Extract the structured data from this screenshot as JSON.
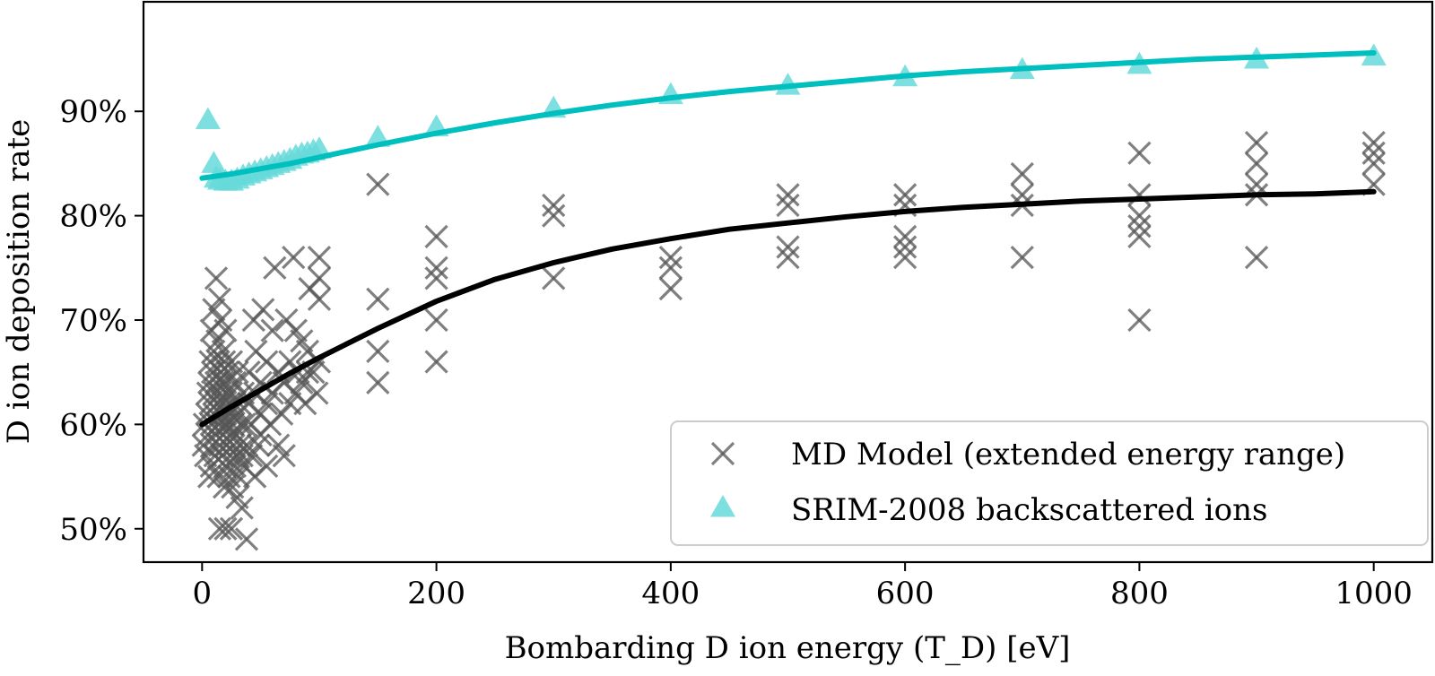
{
  "chart_data": {
    "type": "scatter",
    "xlabel": "Bombarding D ion energy (T_D) [eV]",
    "ylabel": "D ion deposition rate",
    "xlim": [
      -50,
      1050
    ],
    "ylim": [
      46.8,
      100.5
    ],
    "xticks": [
      0,
      200,
      400,
      600,
      800,
      1000
    ],
    "yticks": [
      50,
      60,
      70,
      80,
      90
    ],
    "ytick_labels": [
      "50%",
      "60%",
      "70%",
      "80%",
      "90%"
    ],
    "legend_position": "lower-right",
    "grid": false,
    "series": [
      {
        "name": "MD Model (extended energy range)",
        "kind": "scatter",
        "marker": "x",
        "color": "#555555",
        "points": [
          [
            1,
            58
          ],
          [
            2,
            60
          ],
          [
            3,
            57
          ],
          [
            4,
            61
          ],
          [
            5,
            59
          ],
          [
            5,
            63
          ],
          [
            6,
            55
          ],
          [
            6,
            64
          ],
          [
            7,
            62
          ],
          [
            7,
            66
          ],
          [
            8,
            56
          ],
          [
            8,
            60
          ],
          [
            8,
            69
          ],
          [
            9,
            58
          ],
          [
            9,
            65
          ],
          [
            10,
            61
          ],
          [
            10,
            67
          ],
          [
            10,
            71
          ],
          [
            11,
            57
          ],
          [
            11,
            63
          ],
          [
            12,
            59
          ],
          [
            12,
            64
          ],
          [
            12,
            74
          ],
          [
            13,
            62
          ],
          [
            13,
            68
          ],
          [
            14,
            55
          ],
          [
            14,
            60
          ],
          [
            14,
            66
          ],
          [
            15,
            50
          ],
          [
            15,
            58
          ],
          [
            15,
            63
          ],
          [
            15,
            72
          ],
          [
            16,
            61
          ],
          [
            16,
            65
          ],
          [
            16,
            70
          ],
          [
            17,
            57
          ],
          [
            17,
            64
          ],
          [
            18,
            59
          ],
          [
            18,
            62
          ],
          [
            18,
            67
          ],
          [
            19,
            54
          ],
          [
            19,
            60
          ],
          [
            19,
            66
          ],
          [
            20,
            50
          ],
          [
            20,
            56
          ],
          [
            20,
            61
          ],
          [
            20,
            64
          ],
          [
            20,
            69
          ],
          [
            21,
            58
          ],
          [
            21,
            63
          ],
          [
            22,
            60
          ],
          [
            22,
            65
          ],
          [
            23,
            55
          ],
          [
            23,
            62
          ],
          [
            24,
            57
          ],
          [
            24,
            61
          ],
          [
            25,
            50
          ],
          [
            25,
            59
          ],
          [
            25,
            63
          ],
          [
            25,
            66
          ],
          [
            26,
            54
          ],
          [
            26,
            60
          ],
          [
            27,
            58
          ],
          [
            27,
            62
          ],
          [
            28,
            56
          ],
          [
            28,
            64
          ],
          [
            29,
            59
          ],
          [
            30,
            53
          ],
          [
            30,
            57
          ],
          [
            30,
            61
          ],
          [
            30,
            65
          ],
          [
            31,
            55
          ],
          [
            32,
            58
          ],
          [
            32,
            62
          ],
          [
            33,
            60
          ],
          [
            34,
            52
          ],
          [
            34,
            57
          ],
          [
            35,
            63
          ],
          [
            36,
            56
          ],
          [
            36,
            60
          ],
          [
            38,
            49
          ],
          [
            38,
            58
          ],
          [
            40,
            62
          ],
          [
            40,
            65
          ],
          [
            42,
            57
          ],
          [
            42,
            60
          ],
          [
            44,
            70
          ],
          [
            45,
            55
          ],
          [
            45,
            63
          ],
          [
            46,
            67
          ],
          [
            48,
            58
          ],
          [
            50,
            59
          ],
          [
            50,
            61
          ],
          [
            50,
            64
          ],
          [
            52,
            71
          ],
          [
            55,
            56
          ],
          [
            55,
            62
          ],
          [
            55,
            66
          ],
          [
            58,
            60
          ],
          [
            60,
            63
          ],
          [
            60,
            69
          ],
          [
            62,
            75
          ],
          [
            65,
            58
          ],
          [
            65,
            65
          ],
          [
            68,
            61
          ],
          [
            70,
            64
          ],
          [
            70,
            57
          ],
          [
            72,
            70
          ],
          [
            75,
            66
          ],
          [
            75,
            62
          ],
          [
            78,
            76
          ],
          [
            80,
            69
          ],
          [
            80,
            63
          ],
          [
            82,
            65
          ],
          [
            85,
            68
          ],
          [
            85,
            64
          ],
          [
            88,
            62
          ],
          [
            90,
            65
          ],
          [
            90,
            67
          ],
          [
            92,
            73
          ],
          [
            95,
            65
          ],
          [
            98,
            63
          ],
          [
            100,
            76
          ],
          [
            100,
            74
          ],
          [
            100,
            72
          ],
          [
            100,
            66
          ],
          [
            150,
            83
          ],
          [
            150,
            72
          ],
          [
            150,
            67
          ],
          [
            150,
            64
          ],
          [
            200,
            78
          ],
          [
            200,
            75
          ],
          [
            200,
            74
          ],
          [
            200,
            70
          ],
          [
            200,
            66
          ],
          [
            300,
            81
          ],
          [
            300,
            80
          ],
          [
            300,
            74
          ],
          [
            400,
            76
          ],
          [
            400,
            75
          ],
          [
            400,
            73
          ],
          [
            500,
            82
          ],
          [
            500,
            81
          ],
          [
            500,
            77
          ],
          [
            500,
            76
          ],
          [
            600,
            82
          ],
          [
            600,
            81
          ],
          [
            600,
            78
          ],
          [
            600,
            77
          ],
          [
            600,
            76
          ],
          [
            700,
            84
          ],
          [
            700,
            82
          ],
          [
            700,
            81
          ],
          [
            700,
            76
          ],
          [
            800,
            86
          ],
          [
            800,
            82
          ],
          [
            800,
            80
          ],
          [
            800,
            79
          ],
          [
            800,
            78
          ],
          [
            800,
            70
          ],
          [
            900,
            87
          ],
          [
            900,
            85
          ],
          [
            900,
            83
          ],
          [
            900,
            82
          ],
          [
            900,
            76
          ],
          [
            1000,
            87
          ],
          [
            1000,
            86
          ],
          [
            1000,
            85
          ],
          [
            1000,
            83
          ]
        ]
      },
      {
        "name": "SRIM-2008 backscattered ions",
        "kind": "scatter",
        "marker": "triangle",
        "color": "#66d9d9",
        "points": [
          [
            5,
            89.2
          ],
          [
            10,
            85
          ],
          [
            12,
            83.6
          ],
          [
            15,
            83.4
          ],
          [
            20,
            83.3
          ],
          [
            25,
            83.3
          ],
          [
            30,
            83.5
          ],
          [
            35,
            83.8
          ],
          [
            40,
            84
          ],
          [
            45,
            84.2
          ],
          [
            50,
            84.4
          ],
          [
            55,
            84.6
          ],
          [
            60,
            84.8
          ],
          [
            65,
            85
          ],
          [
            70,
            85.2
          ],
          [
            75,
            85.4
          ],
          [
            80,
            85.7
          ],
          [
            85,
            85.9
          ],
          [
            90,
            86
          ],
          [
            95,
            86.2
          ],
          [
            100,
            86.4
          ],
          [
            150,
            87.5
          ],
          [
            200,
            88.5
          ],
          [
            300,
            90.3
          ],
          [
            400,
            91.6
          ],
          [
            500,
            92.5
          ],
          [
            600,
            93.3
          ],
          [
            700,
            94
          ],
          [
            800,
            94.5
          ],
          [
            900,
            95
          ],
          [
            1000,
            95.3
          ]
        ]
      },
      {
        "kind": "line",
        "color": "#000000",
        "points": [
          [
            0,
            60
          ],
          [
            25,
            61.7
          ],
          [
            50,
            63.3
          ],
          [
            75,
            64.9
          ],
          [
            100,
            66.4
          ],
          [
            150,
            69.2
          ],
          [
            200,
            71.8
          ],
          [
            250,
            73.9
          ],
          [
            300,
            75.5
          ],
          [
            350,
            76.8
          ],
          [
            400,
            77.8
          ],
          [
            450,
            78.7
          ],
          [
            500,
            79.3
          ],
          [
            550,
            79.9
          ],
          [
            600,
            80.4
          ],
          [
            650,
            80.8
          ],
          [
            700,
            81.1
          ],
          [
            750,
            81.4
          ],
          [
            800,
            81.6
          ],
          [
            850,
            81.8
          ],
          [
            900,
            82
          ],
          [
            950,
            82.1
          ],
          [
            1000,
            82.3
          ]
        ]
      },
      {
        "kind": "line",
        "color": "#00bfbf",
        "points": [
          [
            0,
            83.6
          ],
          [
            25,
            84
          ],
          [
            50,
            84.5
          ],
          [
            75,
            85
          ],
          [
            100,
            85.6
          ],
          [
            150,
            86.8
          ],
          [
            200,
            87.9
          ],
          [
            250,
            88.9
          ],
          [
            300,
            89.8
          ],
          [
            350,
            90.6
          ],
          [
            400,
            91.3
          ],
          [
            450,
            91.9
          ],
          [
            500,
            92.4
          ],
          [
            550,
            92.9
          ],
          [
            600,
            93.4
          ],
          [
            650,
            93.8
          ],
          [
            700,
            94.1
          ],
          [
            750,
            94.4
          ],
          [
            800,
            94.7
          ],
          [
            850,
            95
          ],
          [
            900,
            95.2
          ],
          [
            950,
            95.4
          ],
          [
            1000,
            95.6
          ]
        ]
      }
    ]
  }
}
